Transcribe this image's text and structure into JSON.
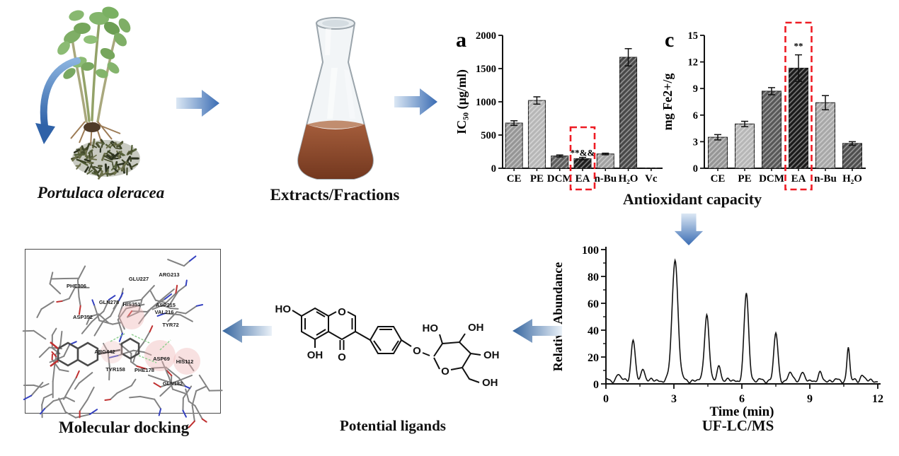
{
  "workflow": {
    "plant_label": "Portulaca oleracea",
    "flask_label": "Extracts/Fractions",
    "antioxidant_label": "Antioxidant capacity",
    "docking_label": "Molecular docking",
    "ligands_label": "Potential ligands",
    "lcms_label": "UF-LC/MS"
  },
  "colors": {
    "arrow_blue_dark": "#3a6cb3",
    "arrow_blue_light": "#dbe7f4",
    "highlight_red": "#ee1c24",
    "liquid_brown": "#8d4a2c",
    "bar_outline": "#161616"
  },
  "chart_data": [
    {
      "id": "ic50",
      "type": "bar",
      "panel": "a",
      "ylabel": "IC₅₀ (µg/ml)",
      "categories": [
        "CE",
        "PE",
        "DCM",
        "EA",
        "n-Bu",
        "H₂O",
        "Vc"
      ],
      "values": [
        680,
        1020,
        185,
        145,
        215,
        1670,
        5
      ],
      "errors": [
        35,
        55,
        15,
        18,
        12,
        130,
        0
      ],
      "ylim": [
        0,
        2000
      ],
      "yticks": [
        0,
        500,
        1000,
        1500,
        2000
      ],
      "bar_colors": [
        "#969696",
        "#b7b7b7",
        "#5e5e5e",
        "#1e1e1e",
        "#a2a2a2",
        "#494949",
        "#808080"
      ],
      "annotation": {
        "category": "EA",
        "text": "**&&"
      },
      "highlight": {
        "category": "EA",
        "color": "#ee1c24"
      }
    },
    {
      "id": "frap",
      "type": "bar",
      "panel": "c",
      "ylabel": "mg Fe2+/g",
      "categories": [
        "CE",
        "PE",
        "DCM",
        "EA",
        "n-Bu",
        "H₂O"
      ],
      "values": [
        3.5,
        5.0,
        8.7,
        11.3,
        7.4,
        2.8
      ],
      "errors": [
        0.3,
        0.3,
        0.4,
        1.5,
        0.8,
        0.2
      ],
      "ylim": [
        0,
        15
      ],
      "yticks": [
        0,
        3,
        6,
        9,
        12,
        15
      ],
      "bar_colors": [
        "#969696",
        "#b7b7b7",
        "#585858",
        "#1b1b1b",
        "#a8a8a8",
        "#4f4f4f"
      ],
      "annotation": {
        "category": "EA",
        "text": "**"
      },
      "highlight": {
        "category": "EA",
        "color": "#ee1c24"
      }
    },
    {
      "id": "chromatogram",
      "type": "line",
      "xlabel": "Time (min)",
      "ylabel": "Relative Abundance",
      "xlim": [
        0,
        12
      ],
      "ylim": [
        0,
        100
      ],
      "xticks": [
        0,
        3,
        6,
        9,
        12
      ],
      "yticks": [
        0,
        20,
        40,
        60,
        80,
        100
      ],
      "baseline": 2.5,
      "peaks": [
        {
          "t": 0.55,
          "h": 5,
          "w": 0.08
        },
        {
          "t": 1.2,
          "h": 30,
          "w": 0.09
        },
        {
          "t": 1.65,
          "h": 9,
          "w": 0.08
        },
        {
          "t": 3.05,
          "h": 90,
          "w": 0.13
        },
        {
          "t": 4.45,
          "h": 50,
          "w": 0.1
        },
        {
          "t": 5.0,
          "h": 11,
          "w": 0.08
        },
        {
          "t": 6.2,
          "h": 65,
          "w": 0.1
        },
        {
          "t": 7.5,
          "h": 35,
          "w": 0.09
        },
        {
          "t": 8.15,
          "h": 6,
          "w": 0.08
        },
        {
          "t": 8.65,
          "h": 6,
          "w": 0.08
        },
        {
          "t": 9.45,
          "h": 5,
          "w": 0.08
        },
        {
          "t": 10.7,
          "h": 25,
          "w": 0.06
        },
        {
          "t": 11.3,
          "h": 4,
          "w": 0.08
        }
      ]
    }
  ],
  "molecule": {
    "name_hint": "isoflavone glucoside",
    "atoms": [
      "HO",
      "O",
      "OH",
      "O",
      "O",
      "HO",
      "OH",
      "OH",
      "O",
      "OH"
    ]
  },
  "docking": {
    "residues": [
      "PHE306",
      "ARG213",
      "GLU227",
      "GLN278",
      "HIS351",
      "ASP215",
      "VAL216",
      "TYR72",
      "ASP352",
      "ARG442",
      "TYR158",
      "PHE178",
      "ASP69",
      "HIS112",
      "GLN182"
    ]
  }
}
